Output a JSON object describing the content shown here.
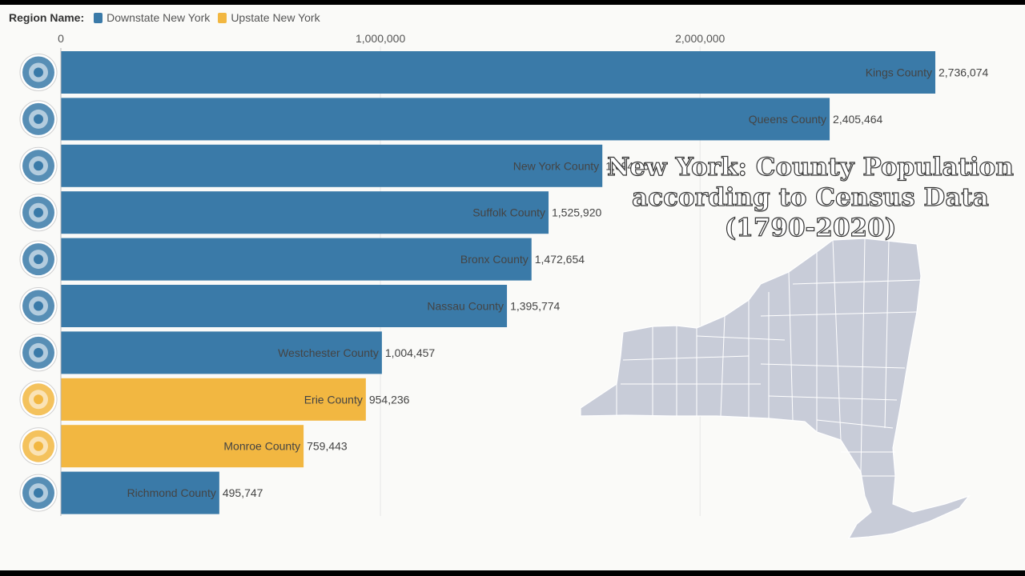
{
  "legend": {
    "label": "Region Name:",
    "items": [
      {
        "name": "Downstate New York",
        "color": "#3a7aa8"
      },
      {
        "name": "Upstate New York",
        "color": "#f2b741"
      }
    ]
  },
  "overlay_title": {
    "line1": "New York: County Population",
    "line2": "according to Census Data",
    "line3": "(1790-2020)"
  },
  "chart_data": {
    "type": "bar",
    "orientation": "horizontal",
    "xlim": [
      0,
      2736074
    ],
    "x_ticks": [
      {
        "value": 0,
        "label": "0"
      },
      {
        "value": 1000000,
        "label": "1,000,000"
      },
      {
        "value": 2000000,
        "label": "2,000,000"
      }
    ],
    "grid": true,
    "legend_position": "top-left",
    "bars": [
      {
        "category": "Kings County",
        "value": 2736074,
        "label": "2,736,074",
        "region": "Downstate New York",
        "icon": "kings-county-seal-icon"
      },
      {
        "category": "Queens County",
        "value": 2405464,
        "label": "2,405,464",
        "region": "Downstate New York",
        "icon": "queens-county-flag-icon"
      },
      {
        "category": "New York County",
        "value": 1694251,
        "label": "1,694,251",
        "region": "Downstate New York",
        "icon": "new-york-county-flag-icon"
      },
      {
        "category": "Suffolk County",
        "value": 1525920,
        "label": "1,525,920",
        "region": "Downstate New York",
        "icon": "suffolk-county-seal-icon"
      },
      {
        "category": "Bronx County",
        "value": 1472654,
        "label": "1,472,654",
        "region": "Downstate New York",
        "icon": "bronx-county-flag-icon"
      },
      {
        "category": "Nassau County",
        "value": 1395774,
        "label": "1,395,774",
        "region": "Downstate New York",
        "icon": "nassau-county-seal-icon"
      },
      {
        "category": "Westchester County",
        "value": 1004457,
        "label": "1,004,457",
        "region": "Downstate New York",
        "icon": "westchester-county-flag-icon"
      },
      {
        "category": "Erie County",
        "value": 954236,
        "label": "954,236",
        "region": "Upstate New York",
        "icon": "erie-county-seal-icon"
      },
      {
        "category": "Monroe County",
        "value": 759443,
        "label": "759,443",
        "region": "Upstate New York",
        "icon": "monroe-county-seal-icon"
      },
      {
        "category": "Richmond County",
        "value": 495747,
        "label": "495,747",
        "region": "Downstate New York",
        "icon": "richmond-county-seal-icon"
      }
    ]
  }
}
